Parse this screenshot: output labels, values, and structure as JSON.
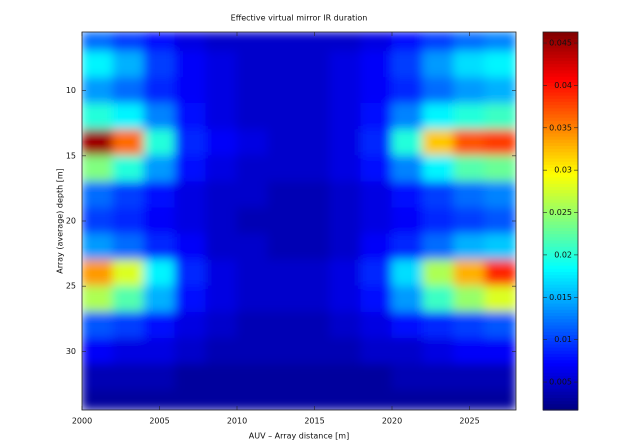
{
  "chart_data": {
    "type": "heatmap",
    "title": "Effective virtual mirror IR duration",
    "xlabel": "AUV – Array distance [m]",
    "ylabel": "Array (average) depth [m]",
    "colormap": "jet",
    "x": [
      2001,
      2003,
      2005,
      2007,
      2009,
      2011,
      2013,
      2015,
      2017,
      2019,
      2021,
      2023,
      2025,
      2027
    ],
    "y": [
      6,
      8,
      10,
      12,
      14,
      16,
      18,
      20,
      22,
      24,
      26,
      28,
      30,
      32,
      34
    ],
    "xlim": [
      2000,
      2028
    ],
    "ylim": [
      5.5,
      34.5
    ],
    "y_reversed": true,
    "xticks": [
      2000,
      2005,
      2010,
      2015,
      2020,
      2025
    ],
    "yticks": [
      10,
      15,
      20,
      25,
      30
    ],
    "clim": [
      0.0017,
      0.0463
    ],
    "cticks": [
      0.005,
      0.01,
      0.015,
      0.02,
      0.025,
      0.03,
      0.035,
      0.04,
      0.045
    ],
    "values": [
      [
        0.012,
        0.01,
        0.008,
        0.006,
        0.005,
        0.005,
        0.005,
        0.005,
        0.005,
        0.006,
        0.008,
        0.01,
        0.012,
        0.013
      ],
      [
        0.018,
        0.015,
        0.01,
        0.007,
        0.006,
        0.005,
        0.005,
        0.005,
        0.006,
        0.007,
        0.01,
        0.014,
        0.017,
        0.018
      ],
      [
        0.014,
        0.012,
        0.009,
        0.007,
        0.006,
        0.005,
        0.005,
        0.005,
        0.006,
        0.007,
        0.009,
        0.012,
        0.014,
        0.015
      ],
      [
        0.02,
        0.018,
        0.013,
        0.008,
        0.006,
        0.005,
        0.005,
        0.005,
        0.006,
        0.008,
        0.013,
        0.018,
        0.02,
        0.021
      ],
      [
        0.045,
        0.036,
        0.02,
        0.009,
        0.007,
        0.006,
        0.005,
        0.005,
        0.006,
        0.009,
        0.02,
        0.032,
        0.037,
        0.038
      ],
      [
        0.024,
        0.02,
        0.014,
        0.008,
        0.006,
        0.005,
        0.005,
        0.005,
        0.006,
        0.008,
        0.013,
        0.018,
        0.022,
        0.023
      ],
      [
        0.012,
        0.01,
        0.008,
        0.006,
        0.005,
        0.005,
        0.004,
        0.004,
        0.005,
        0.006,
        0.008,
        0.01,
        0.012,
        0.013
      ],
      [
        0.01,
        0.009,
        0.007,
        0.006,
        0.005,
        0.004,
        0.004,
        0.004,
        0.005,
        0.006,
        0.007,
        0.009,
        0.01,
        0.011
      ],
      [
        0.014,
        0.012,
        0.009,
        0.007,
        0.005,
        0.005,
        0.004,
        0.004,
        0.005,
        0.007,
        0.009,
        0.012,
        0.015,
        0.016
      ],
      [
        0.034,
        0.028,
        0.018,
        0.009,
        0.006,
        0.005,
        0.005,
        0.005,
        0.006,
        0.009,
        0.017,
        0.026,
        0.033,
        0.039
      ],
      [
        0.026,
        0.022,
        0.015,
        0.008,
        0.006,
        0.005,
        0.005,
        0.005,
        0.006,
        0.008,
        0.014,
        0.021,
        0.025,
        0.028
      ],
      [
        0.011,
        0.01,
        0.008,
        0.006,
        0.005,
        0.004,
        0.004,
        0.004,
        0.005,
        0.006,
        0.008,
        0.009,
        0.01,
        0.011
      ],
      [
        0.007,
        0.006,
        0.006,
        0.005,
        0.004,
        0.004,
        0.004,
        0.004,
        0.004,
        0.005,
        0.005,
        0.006,
        0.007,
        0.007
      ],
      [
        0.004,
        0.004,
        0.004,
        0.003,
        0.003,
        0.003,
        0.003,
        0.003,
        0.003,
        0.003,
        0.004,
        0.004,
        0.004,
        0.004
      ],
      [
        0.003,
        0.003,
        0.003,
        0.003,
        0.003,
        0.003,
        0.003,
        0.003,
        0.003,
        0.003,
        0.003,
        0.003,
        0.003,
        0.003
      ]
    ]
  }
}
